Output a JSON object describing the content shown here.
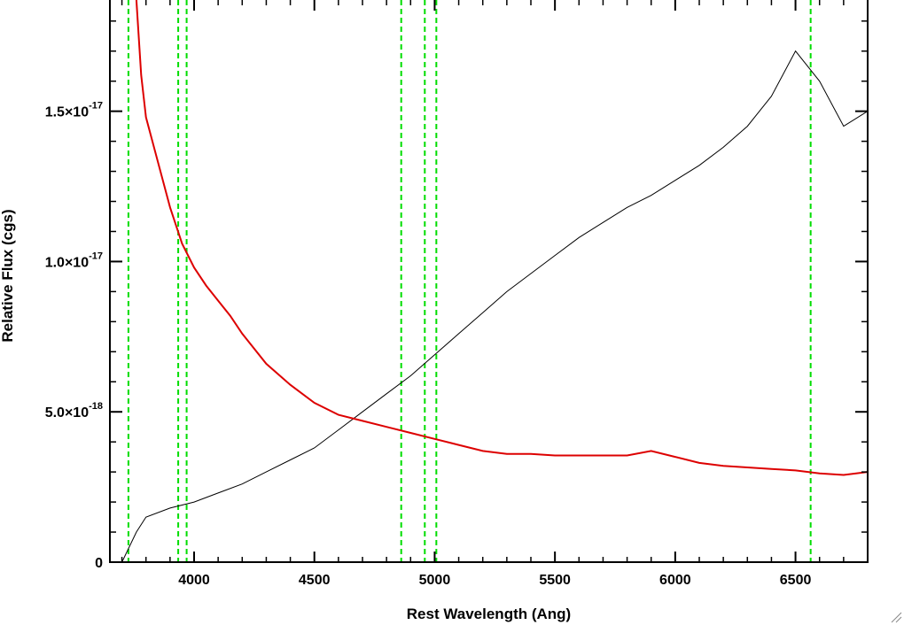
{
  "chart_data": {
    "type": "line",
    "title": "",
    "xlabel": "Rest Wavelength (Ang)",
    "ylabel": "Relative Flux (cgs)",
    "xlim": [
      3650,
      6800
    ],
    "ylim": [
      0,
      1.87e-17
    ],
    "x_ticks": [
      {
        "value": 4000,
        "label": "4000"
      },
      {
        "value": 4500,
        "label": "4500"
      },
      {
        "value": 5000,
        "label": "5000"
      },
      {
        "value": 5500,
        "label": "5500"
      },
      {
        "value": 6000,
        "label": "6000"
      },
      {
        "value": 6500,
        "label": "6500"
      }
    ],
    "y_ticks": [
      {
        "value": 0,
        "mantissa": "0",
        "exponent": ""
      },
      {
        "value": 5e-18,
        "mantissa": "5.0×10",
        "exponent": "-18"
      },
      {
        "value": 1e-17,
        "mantissa": "1.0×10",
        "exponent": "-17"
      },
      {
        "value": 1.5e-17,
        "mantissa": "1.5×10",
        "exponent": "-17"
      }
    ],
    "grid": false,
    "reference_lines": [
      3727,
      3934,
      3969,
      4861,
      4959,
      5007,
      6563
    ],
    "series": [
      {
        "color": "#000000",
        "x": [
          3700,
          3760,
          3800,
          3900,
          4000,
          4100,
          4200,
          4300,
          4400,
          4500,
          4600,
          4700,
          4800,
          4900,
          5000,
          5100,
          5200,
          5300,
          5400,
          5500,
          5600,
          5700,
          5800,
          5900,
          6000,
          6100,
          6200,
          6300,
          6400,
          6500,
          6600,
          6700,
          6800
        ],
        "y": [
          0,
          1e-18,
          1.5e-18,
          1.8e-18,
          2e-18,
          2.3e-18,
          2.6e-18,
          3e-18,
          3.4e-18,
          3.8e-18,
          4.4e-18,
          5e-18,
          5.6e-18,
          6.2e-18,
          6.9e-18,
          7.6e-18,
          8.3e-18,
          9e-18,
          9.6e-18,
          1.02e-17,
          1.08e-17,
          1.13e-17,
          1.18e-17,
          1.22e-17,
          1.27e-17,
          1.32e-17,
          1.38e-17,
          1.45e-17,
          1.55e-17,
          1.7e-17,
          1.6e-17,
          1.45e-17,
          1.5e-17
        ]
      },
      {
        "color": "#dd0000",
        "x": [
          3760,
          3780,
          3800,
          3850,
          3900,
          3950,
          4000,
          4050,
          4100,
          4150,
          4200,
          4300,
          4400,
          4500,
          4600,
          4700,
          4800,
          4900,
          5000,
          5100,
          5200,
          5300,
          5400,
          5500,
          5600,
          5700,
          5800,
          5900,
          6000,
          6100,
          6200,
          6300,
          6400,
          6500,
          6600,
          6700,
          6800
        ],
        "y": [
          1.87e-17,
          1.62e-17,
          1.48e-17,
          1.33e-17,
          1.18e-17,
          1.06e-17,
          9.8e-18,
          9.2e-18,
          8.7e-18,
          8.2e-18,
          7.6e-18,
          6.6e-18,
          5.9e-18,
          5.3e-18,
          4.9e-18,
          4.7e-18,
          4.5e-18,
          4.3e-18,
          4.1e-18,
          3.9e-18,
          3.7e-18,
          3.6e-18,
          3.6e-18,
          3.55e-18,
          3.55e-18,
          3.55e-18,
          3.55e-18,
          3.7e-18,
          3.5e-18,
          3.3e-18,
          3.2e-18,
          3.15e-18,
          3.1e-18,
          3.05e-18,
          2.95e-18,
          2.9e-18,
          3e-18
        ]
      }
    ],
    "colors": {
      "reference": "#00dd00",
      "observed": "#000000",
      "model": "#dd0000"
    }
  }
}
